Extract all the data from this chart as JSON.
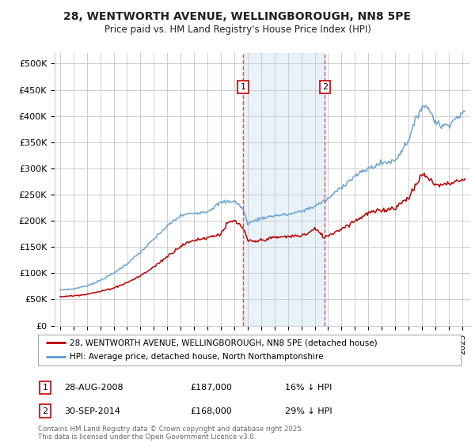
{
  "title": "28, WENTWORTH AVENUE, WELLINGBOROUGH, NN8 5PE",
  "subtitle": "Price paid vs. HM Land Registry's House Price Index (HPI)",
  "ylabel_ticks": [
    "£0",
    "£50K",
    "£100K",
    "£150K",
    "£200K",
    "£250K",
    "£300K",
    "£350K",
    "£400K",
    "£450K",
    "£500K"
  ],
  "ytick_values": [
    0,
    50000,
    100000,
    150000,
    200000,
    250000,
    300000,
    350000,
    400000,
    450000,
    500000
  ],
  "ylim": [
    0,
    520000
  ],
  "xlim_start": 1994.6,
  "xlim_end": 2025.6,
  "marker1_x": 2008.65,
  "marker2_x": 2014.75,
  "shade_color": "#d6e8f5",
  "shade_alpha": 0.55,
  "vline_color": "#e05050",
  "vline_style": "--",
  "hpi_color": "#5b9bd5",
  "price_color": "#c00000",
  "background_color": "#ffffff",
  "grid_color": "#cccccc",
  "legend_line1": "28, WENTWORTH AVENUE, WELLINGBOROUGH, NN8 5PE (detached house)",
  "legend_line2": "HPI: Average price, detached house, North Northamptonshire",
  "annotation1_label": "1",
  "annotation1_date": "28-AUG-2008",
  "annotation1_price": "£187,000",
  "annotation1_hpi": "16% ↓ HPI",
  "annotation2_label": "2",
  "annotation2_date": "30-SEP-2014",
  "annotation2_price": "£168,000",
  "annotation2_hpi": "29% ↓ HPI",
  "copyright_text": "Contains HM Land Registry data © Crown copyright and database right 2025.\nThis data is licensed under the Open Government Licence v3.0.",
  "xtick_years": [
    1995,
    1996,
    1997,
    1998,
    1999,
    2000,
    2001,
    2002,
    2003,
    2004,
    2005,
    2006,
    2007,
    2008,
    2009,
    2010,
    2011,
    2012,
    2013,
    2014,
    2015,
    2016,
    2017,
    2018,
    2019,
    2020,
    2021,
    2022,
    2023,
    2024,
    2025
  ],
  "hpi_keypoints_x": [
    1995,
    1996,
    1997,
    1998,
    1999,
    2000,
    2001,
    2002,
    2003,
    2004,
    2005,
    2006,
    2007,
    2008.0,
    2008.65,
    2009,
    2010,
    2011,
    2012,
    2013,
    2014,
    2015,
    2016,
    2017,
    2018,
    2019,
    2020,
    2021,
    2021.5,
    2022.0,
    2022.5,
    2023.0,
    2023.5,
    2024.0,
    2024.5,
    2025.0
  ],
  "hpi_keypoints_y": [
    68000,
    70000,
    76000,
    86000,
    100000,
    118000,
    140000,
    165000,
    190000,
    210000,
    215000,
    218000,
    235000,
    238000,
    223000,
    195000,
    205000,
    210000,
    212000,
    218000,
    228000,
    242000,
    265000,
    285000,
    300000,
    310000,
    315000,
    355000,
    390000,
    420000,
    415000,
    390000,
    380000,
    385000,
    395000,
    405000
  ],
  "price_keypoints_x": [
    1995,
    1996,
    1997,
    1998,
    1999,
    2000,
    2001,
    2002,
    2003,
    2004,
    2005,
    2006,
    2007,
    2007.5,
    2008.0,
    2008.65,
    2009.0,
    2009.5,
    2010,
    2011,
    2012,
    2013,
    2013.5,
    2014.0,
    2014.75,
    2015,
    2016,
    2017,
    2018,
    2019,
    2020,
    2021,
    2021.5,
    2022.0,
    2022.5,
    2023.0,
    2023.5,
    2024.0,
    2024.5,
    2025.0
  ],
  "price_keypoints_y": [
    55000,
    57000,
    60000,
    65000,
    72000,
    82000,
    95000,
    112000,
    132000,
    152000,
    163000,
    168000,
    175000,
    195000,
    200000,
    187000,
    162000,
    160000,
    163000,
    168000,
    170000,
    172000,
    176000,
    185000,
    168000,
    172000,
    185000,
    200000,
    215000,
    220000,
    225000,
    245000,
    265000,
    290000,
    280000,
    270000,
    268000,
    272000,
    275000,
    278000
  ]
}
